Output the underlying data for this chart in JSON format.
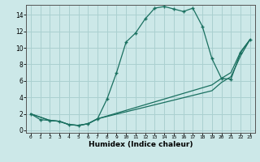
{
  "xlabel": "Humidex (Indice chaleur)",
  "bg_color": "#cce8e8",
  "grid_color": "#aad0d0",
  "line_color": "#1a7060",
  "xlim": [
    -0.5,
    23.5
  ],
  "ylim": [
    -0.3,
    15.2
  ],
  "xticks": [
    0,
    1,
    2,
    3,
    4,
    5,
    6,
    7,
    8,
    9,
    10,
    11,
    12,
    13,
    14,
    15,
    16,
    17,
    18,
    19,
    20,
    21,
    22,
    23
  ],
  "yticks": [
    0,
    2,
    4,
    6,
    8,
    10,
    12,
    14
  ],
  "series1_x": [
    0,
    1,
    2,
    3,
    4,
    5,
    6,
    7,
    8,
    9,
    10,
    11,
    12,
    13,
    14,
    15,
    16,
    17,
    18,
    19,
    20,
    21,
    22,
    23
  ],
  "series1_y": [
    2.0,
    1.3,
    1.2,
    1.1,
    0.7,
    0.6,
    0.8,
    1.4,
    3.8,
    7.0,
    10.7,
    11.8,
    13.5,
    14.8,
    15.0,
    14.7,
    14.4,
    14.8,
    12.6,
    8.7,
    6.3,
    6.2,
    9.4,
    11.0
  ],
  "series2_x": [
    0,
    2,
    3,
    4,
    5,
    6,
    7,
    19,
    20,
    21,
    22,
    23
  ],
  "series2_y": [
    2.0,
    1.2,
    1.1,
    0.7,
    0.6,
    0.8,
    1.4,
    5.5,
    6.3,
    7.0,
    9.5,
    11.0
  ],
  "series3_x": [
    0,
    2,
    3,
    4,
    5,
    6,
    7,
    19,
    20,
    21,
    22,
    23
  ],
  "series3_y": [
    2.0,
    1.2,
    1.1,
    0.7,
    0.6,
    0.8,
    1.4,
    4.8,
    5.8,
    6.5,
    9.0,
    11.0
  ]
}
